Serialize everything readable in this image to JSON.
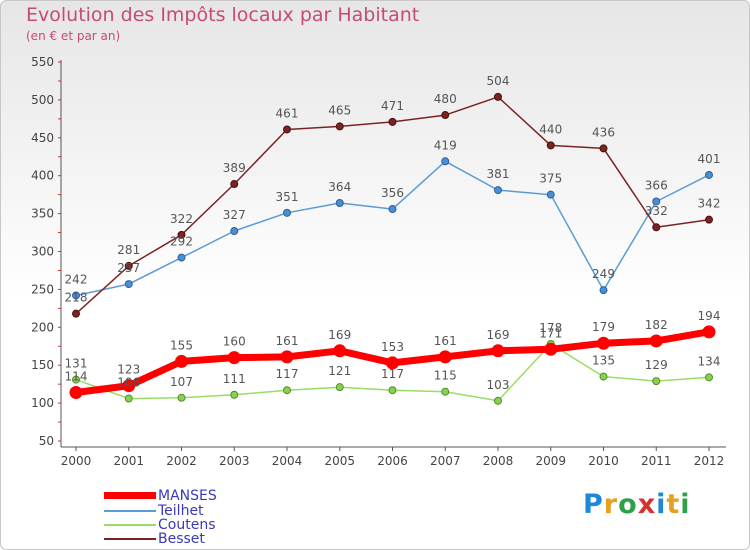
{
  "header": {
    "title": "Evolution des Impôts locaux par Habitant",
    "subtitle": "(en € et par an)"
  },
  "logo_text": "Proxiti",
  "chart_data": {
    "type": "line",
    "title": "Evolution des Impôts locaux par Habitant",
    "subtitle": "(en € et par an)",
    "xlabel": "",
    "ylabel": "",
    "x": [
      "2000",
      "2001",
      "2002",
      "2003",
      "2004",
      "2005",
      "2006",
      "2007",
      "2008",
      "2009",
      "2010",
      "2011",
      "2012"
    ],
    "ylim": [
      50,
      550
    ],
    "yticks": [
      50,
      100,
      150,
      200,
      250,
      300,
      350,
      400,
      450,
      500,
      550
    ],
    "grid": false,
    "legend": "bottom-left",
    "series": [
      {
        "name": "MANSES",
        "color": "#ff0000",
        "values": [
          114,
          123,
          155,
          160,
          161,
          169,
          153,
          161,
          169,
          171,
          179,
          182,
          194
        ],
        "labels": [
          "114",
          "123",
          "155",
          "160",
          "161",
          "169",
          "153",
          "161",
          "169",
          "171",
          "179",
          "182",
          "194"
        ]
      },
      {
        "name": "Teilhet",
        "color": "#5b9bd5",
        "values": [
          242,
          257,
          292,
          327,
          351,
          364,
          356,
          419,
          381,
          375,
          249,
          366,
          401
        ],
        "labels": [
          "242",
          "257",
          "292",
          "327",
          "351",
          "364",
          "356",
          "419",
          "381",
          "375",
          "249",
          "366",
          "401"
        ]
      },
      {
        "name": "Coutens",
        "color": "#99dd66",
        "values": [
          131,
          106,
          107,
          111,
          117,
          121,
          117,
          115,
          103,
          178,
          135,
          129,
          134
        ],
        "labels": [
          "131",
          "106",
          "107",
          "111",
          "117",
          "121",
          "117",
          "115",
          "103",
          "178",
          "135",
          "129",
          "134"
        ]
      },
      {
        "name": "Besset",
        "color": "#7b2323",
        "values": [
          218,
          281,
          322,
          389,
          461,
          465,
          471,
          480,
          504,
          440,
          436,
          332,
          342
        ],
        "labels": [
          "218",
          "281",
          "322",
          "389",
          "461",
          "465",
          "471",
          "480",
          "504",
          "440",
          "436",
          "332",
          "342"
        ]
      }
    ]
  }
}
